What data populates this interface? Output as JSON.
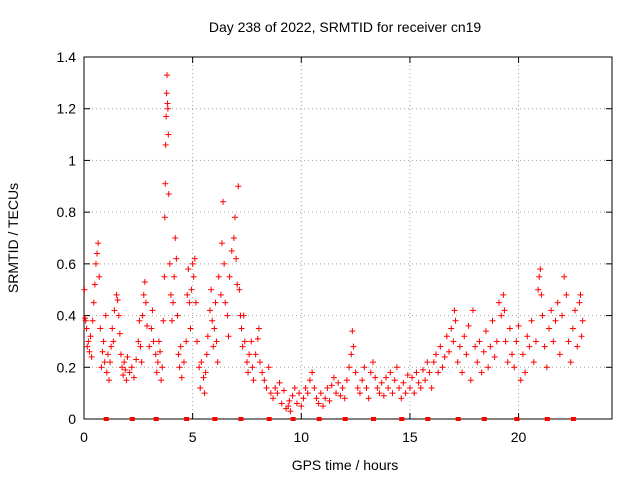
{
  "chart_data": {
    "type": "scatter",
    "title": "Day 238 of 2022, SRMTID for receiver cn19",
    "xlabel": "GPS time / hours",
    "ylabel": "SRMTID / TECUs",
    "xlim": [
      0,
      24.3
    ],
    "ylim": [
      0,
      1.4
    ],
    "xticks": [
      0,
      5,
      10,
      15,
      20
    ],
    "xtick_labels": [
      "0",
      "5",
      "10",
      "15",
      "20"
    ],
    "yticks": [
      0,
      0.2,
      0.4,
      0.6,
      0.8,
      1,
      1.2,
      1.4
    ],
    "ytick_labels": [
      "0",
      "0.2",
      "0.4",
      "0.6",
      "0.8",
      "1",
      "1.2",
      "1.4"
    ],
    "grid": true,
    "marker": "plus",
    "color": "#ff0000",
    "series": [
      {
        "name": "SRMTID",
        "points": [
          [
            0.02,
            0.5
          ],
          [
            0.05,
            0.39
          ],
          [
            0.08,
            0.38
          ],
          [
            0.12,
            0.35
          ],
          [
            0.15,
            0.28
          ],
          [
            0.2,
            0.3
          ],
          [
            0.25,
            0.26
          ],
          [
            0.3,
            0.32
          ],
          [
            0.35,
            0.24
          ],
          [
            0.4,
            0.38
          ],
          [
            0.45,
            0.45
          ],
          [
            0.5,
            0.52
          ],
          [
            0.55,
            0.6
          ],
          [
            0.6,
            0.64
          ],
          [
            0.65,
            0.68
          ],
          [
            0.7,
            0.55
          ],
          [
            0.75,
            0.35
          ],
          [
            0.8,
            0.2
          ],
          [
            0.85,
            0.26
          ],
          [
            0.9,
            0.3
          ],
          [
            0.95,
            0.22
          ],
          [
            1.0,
            0.4
          ],
          [
            1.05,
            0.18
          ],
          [
            1.1,
            0.25
          ],
          [
            1.15,
            0.15
          ],
          [
            1.2,
            0.22
          ],
          [
            1.25,
            0.28
          ],
          [
            1.3,
            0.35
          ],
          [
            1.35,
            0.3
          ],
          [
            1.4,
            0.42
          ],
          [
            1.5,
            0.48
          ],
          [
            1.55,
            0.46
          ],
          [
            1.6,
            0.4
          ],
          [
            1.65,
            0.33
          ],
          [
            1.7,
            0.25
          ],
          [
            1.75,
            0.2
          ],
          [
            1.8,
            0.17
          ],
          [
            1.85,
            0.22
          ],
          [
            1.9,
            0.19
          ],
          [
            1.95,
            0.15
          ],
          [
            2.0,
            0.24
          ],
          [
            2.1,
            0.18
          ],
          [
            2.2,
            0.2
          ],
          [
            2.3,
            0.16
          ],
          [
            2.4,
            0.23
          ],
          [
            2.5,
            0.3
          ],
          [
            2.55,
            0.38
          ],
          [
            2.6,
            0.28
          ],
          [
            2.65,
            0.22
          ],
          [
            2.7,
            0.4
          ],
          [
            2.75,
            0.48
          ],
          [
            2.8,
            0.53
          ],
          [
            2.85,
            0.45
          ],
          [
            2.9,
            0.36
          ],
          [
            3.0,
            0.28
          ],
          [
            3.1,
            0.35
          ],
          [
            3.15,
            0.42
          ],
          [
            3.2,
            0.3
          ],
          [
            3.3,
            0.25
          ],
          [
            3.35,
            0.18
          ],
          [
            3.4,
            0.22
          ],
          [
            3.45,
            0.3
          ],
          [
            3.5,
            0.26
          ],
          [
            3.55,
            0.15
          ],
          [
            3.6,
            0.2
          ],
          [
            3.65,
            0.38
          ],
          [
            3.7,
            0.55
          ],
          [
            3.72,
            0.78
          ],
          [
            3.74,
            0.91
          ],
          [
            3.76,
            1.06
          ],
          [
            3.78,
            1.17
          ],
          [
            3.8,
            1.26
          ],
          [
            3.82,
            1.33
          ],
          [
            3.84,
            1.22
          ],
          [
            3.86,
            1.2
          ],
          [
            3.88,
            1.1
          ],
          [
            3.9,
            0.87
          ],
          [
            3.95,
            0.6
          ],
          [
            4.0,
            0.48
          ],
          [
            4.05,
            0.38
          ],
          [
            4.1,
            0.45
          ],
          [
            4.15,
            0.55
          ],
          [
            4.2,
            0.7
          ],
          [
            4.25,
            0.62
          ],
          [
            4.3,
            0.4
          ],
          [
            4.35,
            0.25
          ],
          [
            4.4,
            0.2
          ],
          [
            4.45,
            0.28
          ],
          [
            4.5,
            0.16
          ],
          [
            4.6,
            0.22
          ],
          [
            4.7,
            0.3
          ],
          [
            4.75,
            0.48
          ],
          [
            4.8,
            0.58
          ],
          [
            4.85,
            0.45
          ],
          [
            4.9,
            0.35
          ],
          [
            4.95,
            0.5
          ],
          [
            5.0,
            0.6
          ],
          [
            5.05,
            0.55
          ],
          [
            5.1,
            0.62
          ],
          [
            5.15,
            0.45
          ],
          [
            5.2,
            0.3
          ],
          [
            5.3,
            0.2
          ],
          [
            5.35,
            0.12
          ],
          [
            5.4,
            0.22
          ],
          [
            5.5,
            0.16
          ],
          [
            5.55,
            0.1
          ],
          [
            5.6,
            0.18
          ],
          [
            5.65,
            0.25
          ],
          [
            5.7,
            0.32
          ],
          [
            5.8,
            0.42
          ],
          [
            5.85,
            0.5
          ],
          [
            5.9,
            0.38
          ],
          [
            5.95,
            0.28
          ],
          [
            6.0,
            0.35
          ],
          [
            6.05,
            0.45
          ],
          [
            6.1,
            0.3
          ],
          [
            6.15,
            0.22
          ],
          [
            6.2,
            0.55
          ],
          [
            6.3,
            0.48
          ],
          [
            6.35,
            0.68
          ],
          [
            6.4,
            0.84
          ],
          [
            6.45,
            0.6
          ],
          [
            6.5,
            0.45
          ],
          [
            6.6,
            0.4
          ],
          [
            6.65,
            0.32
          ],
          [
            6.7,
            0.55
          ],
          [
            6.8,
            0.65
          ],
          [
            6.9,
            0.7
          ],
          [
            6.95,
            0.78
          ],
          [
            7.0,
            0.62
          ],
          [
            7.05,
            0.52
          ],
          [
            7.1,
            0.9
          ],
          [
            7.15,
            0.5
          ],
          [
            7.2,
            0.4
          ],
          [
            7.25,
            0.35
          ],
          [
            7.3,
            0.28
          ],
          [
            7.35,
            0.4
          ],
          [
            7.4,
            0.3
          ],
          [
            7.5,
            0.22
          ],
          [
            7.55,
            0.18
          ],
          [
            7.6,
            0.25
          ],
          [
            7.7,
            0.3
          ],
          [
            7.75,
            0.2
          ],
          [
            7.8,
            0.15
          ],
          [
            7.9,
            0.25
          ],
          [
            8.0,
            0.31
          ],
          [
            8.05,
            0.35
          ],
          [
            8.1,
            0.22
          ],
          [
            8.2,
            0.18
          ],
          [
            8.3,
            0.15
          ],
          [
            8.4,
            0.12
          ],
          [
            8.5,
            0.2
          ],
          [
            8.6,
            0.1
          ],
          [
            8.7,
            0.08
          ],
          [
            8.8,
            0.12
          ],
          [
            8.9,
            0.1
          ],
          [
            9.0,
            0.14
          ],
          [
            9.1,
            0.06
          ],
          [
            9.2,
            0.11
          ],
          [
            9.3,
            0.04
          ],
          [
            9.4,
            0.05
          ],
          [
            9.45,
            0.07
          ],
          [
            9.5,
            0.03
          ],
          [
            9.6,
            0.09
          ],
          [
            9.7,
            0.12
          ],
          [
            9.8,
            0.06
          ],
          [
            9.9,
            0.1
          ],
          [
            10.0,
            0.05
          ],
          [
            10.1,
            0.08
          ],
          [
            10.2,
            0.12
          ],
          [
            10.3,
            0.1
          ],
          [
            10.4,
            0.15
          ],
          [
            10.5,
            0.18
          ],
          [
            10.6,
            0.12
          ],
          [
            10.7,
            0.08
          ],
          [
            10.8,
            0.06
          ],
          [
            10.9,
            0.1
          ],
          [
            11.0,
            0.05
          ],
          [
            11.1,
            0.08
          ],
          [
            11.2,
            0.12
          ],
          [
            11.3,
            0.07
          ],
          [
            11.4,
            0.13
          ],
          [
            11.5,
            0.16
          ],
          [
            11.6,
            0.1
          ],
          [
            11.7,
            0.14
          ],
          [
            11.8,
            0.09
          ],
          [
            11.9,
            0.12
          ],
          [
            12.0,
            0.08
          ],
          [
            12.1,
            0.15
          ],
          [
            12.2,
            0.2
          ],
          [
            12.3,
            0.25
          ],
          [
            12.35,
            0.34
          ],
          [
            12.4,
            0.28
          ],
          [
            12.5,
            0.18
          ],
          [
            12.6,
            0.12
          ],
          [
            12.7,
            0.1
          ],
          [
            12.8,
            0.15
          ],
          [
            12.9,
            0.2
          ],
          [
            13.0,
            0.12
          ],
          [
            13.1,
            0.08
          ],
          [
            13.2,
            0.18
          ],
          [
            13.3,
            0.22
          ],
          [
            13.4,
            0.16
          ],
          [
            13.5,
            0.12
          ],
          [
            13.6,
            0.1
          ],
          [
            13.7,
            0.14
          ],
          [
            13.8,
            0.09
          ],
          [
            13.9,
            0.16
          ],
          [
            14.0,
            0.12
          ],
          [
            14.1,
            0.18
          ],
          [
            14.2,
            0.1
          ],
          [
            14.3,
            0.15
          ],
          [
            14.4,
            0.2
          ],
          [
            14.5,
            0.12
          ],
          [
            14.6,
            0.08
          ],
          [
            14.7,
            0.14
          ],
          [
            14.8,
            0.1
          ],
          [
            14.9,
            0.17
          ],
          [
            15.0,
            0.12
          ],
          [
            15.1,
            0.16
          ],
          [
            15.2,
            0.1
          ],
          [
            15.3,
            0.18
          ],
          [
            15.4,
            0.14
          ],
          [
            15.5,
            0.12
          ],
          [
            15.6,
            0.19
          ],
          [
            15.7,
            0.15
          ],
          [
            15.8,
            0.22
          ],
          [
            15.9,
            0.18
          ],
          [
            16.0,
            0.12
          ],
          [
            16.1,
            0.22
          ],
          [
            16.2,
            0.25
          ],
          [
            16.3,
            0.18
          ],
          [
            16.4,
            0.28
          ],
          [
            16.5,
            0.2
          ],
          [
            16.6,
            0.24
          ],
          [
            16.7,
            0.32
          ],
          [
            16.8,
            0.26
          ],
          [
            16.9,
            0.35
          ],
          [
            17.0,
            0.3
          ],
          [
            17.05,
            0.42
          ],
          [
            17.1,
            0.38
          ],
          [
            17.2,
            0.22
          ],
          [
            17.3,
            0.28
          ],
          [
            17.4,
            0.18
          ],
          [
            17.5,
            0.32
          ],
          [
            17.6,
            0.25
          ],
          [
            17.7,
            0.36
          ],
          [
            17.8,
            0.15
          ],
          [
            17.9,
            0.42
          ],
          [
            18.0,
            0.28
          ],
          [
            18.1,
            0.22
          ],
          [
            18.2,
            0.3
          ],
          [
            18.3,
            0.18
          ],
          [
            18.4,
            0.26
          ],
          [
            18.5,
            0.34
          ],
          [
            18.6,
            0.2
          ],
          [
            18.7,
            0.28
          ],
          [
            18.8,
            0.38
          ],
          [
            18.9,
            0.24
          ],
          [
            19.0,
            0.3
          ],
          [
            19.1,
            0.45
          ],
          [
            19.2,
            0.4
          ],
          [
            19.3,
            0.48
          ],
          [
            19.35,
            0.42
          ],
          [
            19.4,
            0.3
          ],
          [
            19.5,
            0.22
          ],
          [
            19.6,
            0.35
          ],
          [
            19.7,
            0.25
          ],
          [
            19.8,
            0.2
          ],
          [
            19.9,
            0.3
          ],
          [
            20.0,
            0.36
          ],
          [
            20.1,
            0.15
          ],
          [
            20.2,
            0.25
          ],
          [
            20.3,
            0.18
          ],
          [
            20.4,
            0.32
          ],
          [
            20.5,
            0.28
          ],
          [
            20.6,
            0.38
          ],
          [
            20.7,
            0.22
          ],
          [
            20.8,
            0.3
          ],
          [
            20.9,
            0.5
          ],
          [
            20.95,
            0.55
          ],
          [
            21.0,
            0.58
          ],
          [
            21.05,
            0.48
          ],
          [
            21.1,
            0.4
          ],
          [
            21.2,
            0.28
          ],
          [
            21.3,
            0.2
          ],
          [
            21.4,
            0.35
          ],
          [
            21.5,
            0.42
          ],
          [
            21.6,
            0.3
          ],
          [
            21.7,
            0.38
          ],
          [
            21.8,
            0.45
          ],
          [
            21.9,
            0.25
          ],
          [
            22.0,
            0.4
          ],
          [
            22.1,
            0.55
          ],
          [
            22.2,
            0.48
          ],
          [
            22.3,
            0.3
          ],
          [
            22.4,
            0.22
          ],
          [
            22.5,
            0.35
          ],
          [
            22.6,
            0.42
          ],
          [
            22.7,
            0.28
          ],
          [
            22.8,
            0.45
          ],
          [
            22.85,
            0.48
          ],
          [
            22.9,
            0.32
          ],
          [
            22.95,
            0.38
          ]
        ]
      }
    ],
    "baseline_markers": [
      1.0,
      2.2,
      3.3,
      4.7,
      6.0,
      7.2,
      8.5,
      9.6,
      10.8,
      12.0,
      13.3,
      14.6,
      15.8,
      17.2,
      18.4,
      19.9,
      21.3,
      22.5
    ],
    "legend": "none"
  }
}
